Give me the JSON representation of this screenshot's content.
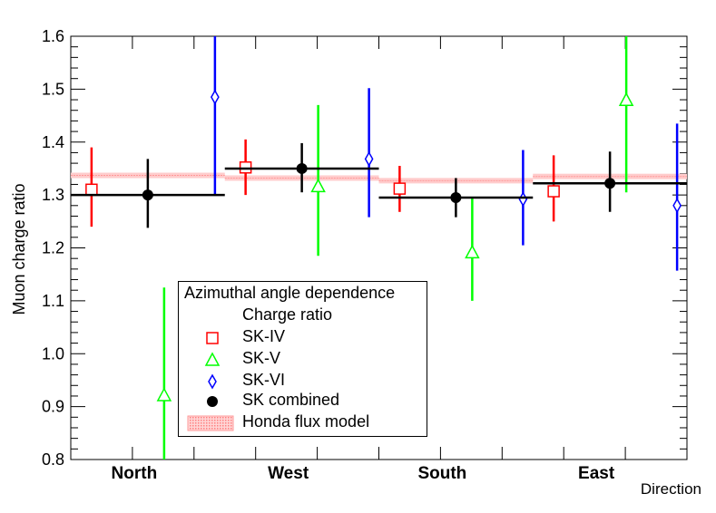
{
  "chart_data": {
    "type": "scatter",
    "title": "",
    "xlabel": "Direction",
    "ylabel": "Muon charge ratio",
    "ylim": [
      0.8,
      1.6
    ],
    "yticks": [
      "0.8",
      "0.9",
      "1.0",
      "1.1",
      "1.2",
      "1.3",
      "1.4",
      "1.5",
      "1.6"
    ],
    "categories": [
      "North",
      "West",
      "South",
      "East"
    ],
    "series": [
      {
        "name": "SK-IV",
        "color": "#ff0000",
        "marker": "square",
        "values": [
          1.31,
          1.352,
          1.312,
          1.307
        ],
        "err_low": [
          1.24,
          1.3,
          1.268,
          1.25
        ],
        "err_high": [
          1.39,
          1.405,
          1.355,
          1.375
        ]
      },
      {
        "name": "SK-V",
        "color": "#00ff00",
        "marker": "triangle",
        "values": [
          0.92,
          1.315,
          1.19,
          1.478
        ],
        "err_low": [
          0.8,
          1.185,
          1.1,
          1.305
        ],
        "err_high": [
          1.125,
          1.47,
          1.295,
          1.6
        ]
      },
      {
        "name": "SK-VI",
        "color": "#0000ff",
        "marker": "diamond",
        "values": [
          1.485,
          1.368,
          1.292,
          1.28
        ],
        "err_low": [
          1.3,
          1.258,
          1.205,
          1.157
        ],
        "err_high": [
          1.6,
          1.502,
          1.385,
          1.435
        ]
      },
      {
        "name": "SK combined",
        "color": "#000000",
        "marker": "circle",
        "values": [
          1.3,
          1.35,
          1.295,
          1.322
        ],
        "err_low": [
          1.238,
          1.305,
          1.258,
          1.268
        ],
        "err_high": [
          1.368,
          1.398,
          1.332,
          1.382
        ]
      }
    ],
    "honda_flux_model": {
      "name": "Honda flux model",
      "color": "#ff9999",
      "values": [
        1.337,
        1.332,
        1.327,
        1.335
      ]
    },
    "legend": {
      "title": "Azimuthal angle dependence",
      "subtitle": "Charge ratio",
      "entries": [
        "SK-IV",
        "SK-V",
        "SK-VI",
        "SK combined",
        "Honda flux model"
      ],
      "position": "bottom-left"
    }
  }
}
